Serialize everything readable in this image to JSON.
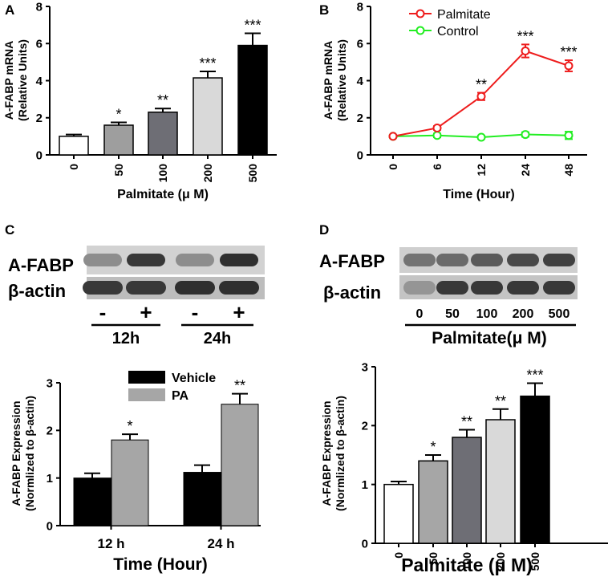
{
  "panels": {
    "a": "A",
    "b": "B",
    "c": "C",
    "d": "D"
  },
  "chart_data": [
    {
      "id": "A",
      "type": "bar",
      "ylabel": "A-FABP mRNA",
      "ylabel2": "(Relative Units)",
      "xlabel": "Palmitate (μ M)",
      "categories": [
        "0",
        "50",
        "100",
        "200",
        "500"
      ],
      "values": [
        1.0,
        1.6,
        2.3,
        4.15,
        5.9
      ],
      "errors": [
        0.1,
        0.15,
        0.2,
        0.35,
        0.65
      ],
      "significance": [
        "",
        "*",
        "**",
        "***",
        "***"
      ],
      "colors": [
        "#ffffff",
        "#9e9e9e",
        "#6e6e75",
        "#d9d9d9",
        "#000000"
      ],
      "ylim": [
        0,
        8
      ],
      "yticks": [
        "0",
        "2",
        "4",
        "6",
        "8"
      ]
    },
    {
      "id": "B",
      "type": "line",
      "ylabel": "A-FABP mRNA",
      "ylabel2": "(Relative Units)",
      "xlabel": "Time (Hour)",
      "categories": [
        "0",
        "6",
        "12",
        "24",
        "48"
      ],
      "series": [
        {
          "name": "Palmitate",
          "color": "#ee1c1c",
          "values": [
            1.0,
            1.45,
            3.15,
            5.6,
            4.8
          ],
          "errors": [
            0.05,
            0.1,
            0.2,
            0.35,
            0.3
          ],
          "significance": [
            "",
            "",
            "**",
            "***",
            "***"
          ]
        },
        {
          "name": "Control",
          "color": "#22ee22",
          "values": [
            1.0,
            1.05,
            0.95,
            1.1,
            1.05
          ],
          "errors": [
            0.05,
            0.1,
            0.08,
            0.12,
            0.2
          ],
          "significance": [
            "",
            "",
            "",
            "",
            ""
          ]
        }
      ],
      "ylim": [
        0,
        8
      ],
      "yticks": [
        "0",
        "2",
        "4",
        "6",
        "8"
      ]
    },
    {
      "id": "C",
      "type": "bar",
      "ylabel": "A-FABP Expression",
      "ylabel2": "(Normlized to β-actin)",
      "xlabel": "Time (Hour)",
      "categories": [
        "12 h",
        "24 h"
      ],
      "series": [
        {
          "name": "Vehicle",
          "color": "#000000",
          "values": [
            1.0,
            1.12
          ],
          "errors": [
            0.1,
            0.15
          ],
          "significance": [
            "",
            ""
          ]
        },
        {
          "name": "PA",
          "color": "#a6a6a6",
          "values": [
            1.8,
            2.55
          ],
          "errors": [
            0.12,
            0.22
          ],
          "significance": [
            "*",
            "**"
          ]
        }
      ],
      "ylim": [
        0,
        3
      ],
      "yticks": [
        "0",
        "1",
        "2",
        "3"
      ]
    },
    {
      "id": "D",
      "type": "bar",
      "ylabel": "A-FABP Expression",
      "ylabel2": "(Normlized to β-actin)",
      "xlabel": "Palmitate (μ M)",
      "categories": [
        "0",
        "50",
        "100",
        "200",
        "500"
      ],
      "values": [
        1.0,
        1.4,
        1.8,
        2.1,
        2.5
      ],
      "errors": [
        0.05,
        0.1,
        0.13,
        0.18,
        0.22
      ],
      "significance": [
        "",
        "*",
        "**",
        "**",
        "***"
      ],
      "colors": [
        "#ffffff",
        "#a6a6a6",
        "#6e6e75",
        "#d9d9d9",
        "#000000"
      ],
      "ylim": [
        0,
        3
      ],
      "yticks": [
        "0",
        "1",
        "2",
        "3"
      ]
    }
  ],
  "blot_c": {
    "row1_label": "A-FABP",
    "row2_label": "β-actin",
    "lanes": [
      "-",
      "+",
      "-",
      "+"
    ],
    "groups": [
      "12h",
      "24h"
    ],
    "row1_intensity": [
      0.35,
      0.85,
      0.35,
      0.9
    ],
    "row2_intensity": [
      0.85,
      0.85,
      0.9,
      0.9
    ]
  },
  "blot_d": {
    "row1_label": "A-FABP",
    "row2_label": "β-actin",
    "lanes": [
      "0",
      "50",
      "100",
      "200",
      "500"
    ],
    "caption": "Palmitate(μ M)",
    "row1_intensity": [
      0.5,
      0.55,
      0.65,
      0.75,
      0.8
    ],
    "row2_intensity": [
      0.3,
      0.85,
      0.85,
      0.85,
      0.85
    ]
  }
}
